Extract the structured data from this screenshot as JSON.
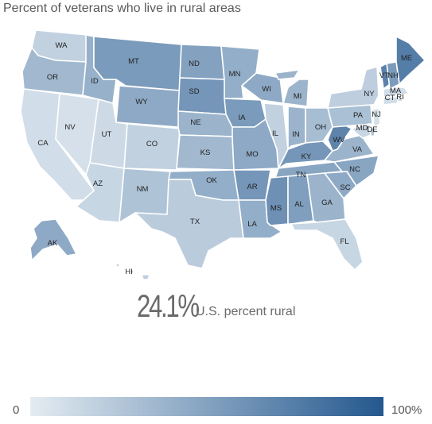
{
  "title": "Percent of veterans who live in rural areas",
  "stat": {
    "value": "24.1%",
    "label": "U.S. percent rural"
  },
  "legend": {
    "min_label": "0",
    "max_label": "100%",
    "color_low": "#e4ecf2",
    "color_high": "#24588e"
  },
  "colors": {
    "background": "#ffffff",
    "border": "#ffffff"
  },
  "states": [
    {
      "abbr": "WA",
      "shade": 0.18
    },
    {
      "abbr": "OR",
      "shade": 0.35
    },
    {
      "abbr": "CA",
      "shade": 0.1
    },
    {
      "abbr": "NV",
      "shade": 0.08
    },
    {
      "abbr": "ID",
      "shade": 0.4
    },
    {
      "abbr": "MT",
      "shade": 0.55
    },
    {
      "abbr": "WY",
      "shade": 0.45
    },
    {
      "abbr": "UT",
      "shade": 0.12
    },
    {
      "abbr": "AZ",
      "shade": 0.15
    },
    {
      "abbr": "CO",
      "shade": 0.18
    },
    {
      "abbr": "NM",
      "shade": 0.28
    },
    {
      "abbr": "ND",
      "shade": 0.5
    },
    {
      "abbr": "SD",
      "shade": 0.58
    },
    {
      "abbr": "NE",
      "shade": 0.38
    },
    {
      "abbr": "KS",
      "shade": 0.35
    },
    {
      "abbr": "OK",
      "shade": 0.42
    },
    {
      "abbr": "TX",
      "shade": 0.22
    },
    {
      "abbr": "MN",
      "shade": 0.42
    },
    {
      "abbr": "IA",
      "shade": 0.55
    },
    {
      "abbr": "MO",
      "shade": 0.45
    },
    {
      "abbr": "AR",
      "shade": 0.58
    },
    {
      "abbr": "LA",
      "shade": 0.42
    },
    {
      "abbr": "WI",
      "shade": 0.45
    },
    {
      "abbr": "IL",
      "shade": 0.18
    },
    {
      "abbr": "MI",
      "shade": 0.38
    },
    {
      "abbr": "IN",
      "shade": 0.38
    },
    {
      "abbr": "OH",
      "shade": 0.32
    },
    {
      "abbr": "KY",
      "shade": 0.58
    },
    {
      "abbr": "TN",
      "shade": 0.48
    },
    {
      "abbr": "MS",
      "shade": 0.62
    },
    {
      "abbr": "AL",
      "shade": 0.52
    },
    {
      "abbr": "GA",
      "shade": 0.38
    },
    {
      "abbr": "FL",
      "shade": 0.15
    },
    {
      "abbr": "SC",
      "shade": 0.45
    },
    {
      "abbr": "NC",
      "shade": 0.48
    },
    {
      "abbr": "VA",
      "shade": 0.38
    },
    {
      "abbr": "WV",
      "shade": 0.7
    },
    {
      "abbr": "PA",
      "shade": 0.3
    },
    {
      "abbr": "NY",
      "shade": 0.2
    },
    {
      "abbr": "ME",
      "shade": 0.75
    },
    {
      "abbr": "VT",
      "shade": 0.72
    },
    {
      "abbr": "NH",
      "shade": 0.55
    },
    {
      "abbr": "MA",
      "shade": 0.1
    },
    {
      "abbr": "CT",
      "shade": 0.1
    },
    {
      "abbr": "RI",
      "shade": 0.1
    },
    {
      "abbr": "NJ",
      "shade": 0.08
    },
    {
      "abbr": "DE",
      "shade": 0.3
    },
    {
      "abbr": "MD",
      "shade": 0.15
    },
    {
      "abbr": "AK",
      "shade": 0.45
    },
    {
      "abbr": "HI",
      "shade": 0.2
    }
  ]
}
